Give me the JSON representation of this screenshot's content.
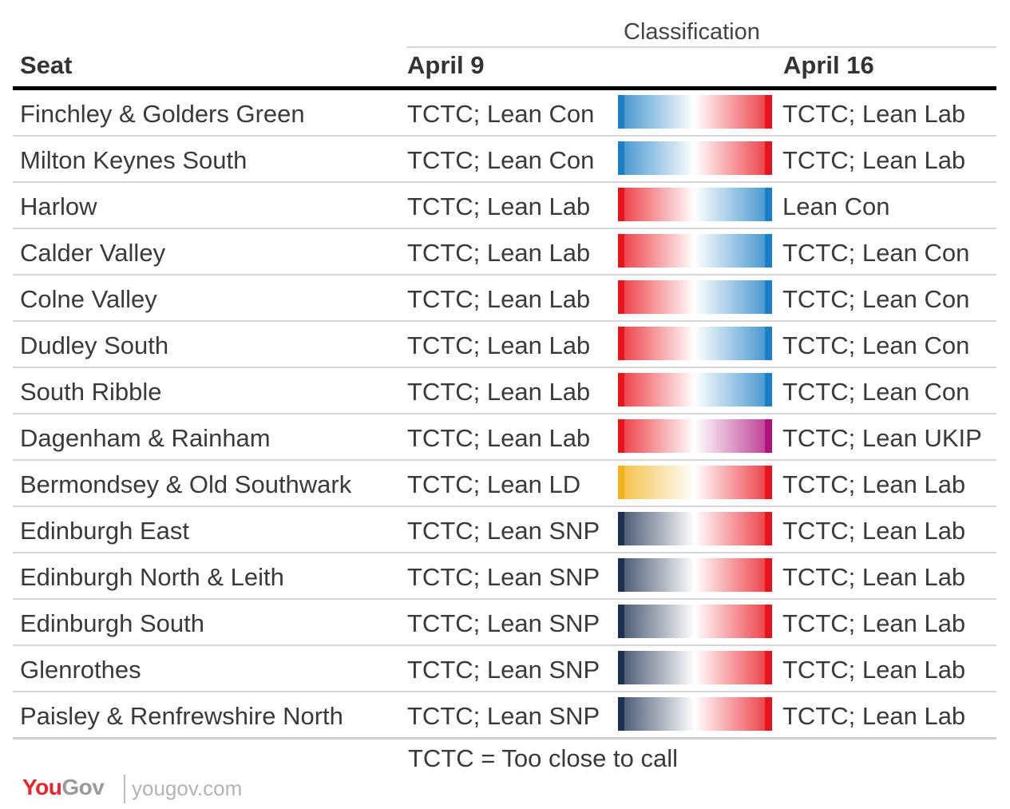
{
  "header": {
    "classification": "Classification",
    "seat": "Seat",
    "april9": "April 9",
    "april16": "April 16"
  },
  "colors": {
    "Con": "#1a7fc4",
    "Lab": "#e8141c",
    "LD": "#f2b21f",
    "SNP": "#1d3050",
    "UKIP": "#b0127d"
  },
  "rows": [
    {
      "seat": "Finchley & Golders Green",
      "april9": "TCTC; Lean Con",
      "april16": "TCTC; Lean Lab",
      "from": "Con",
      "to": "Lab"
    },
    {
      "seat": "Milton Keynes South",
      "april9": "TCTC; Lean Con",
      "april16": "TCTC; Lean Lab",
      "from": "Con",
      "to": "Lab"
    },
    {
      "seat": "Harlow",
      "april9": "TCTC; Lean Lab",
      "april16": "Lean Con",
      "from": "Lab",
      "to": "Con"
    },
    {
      "seat": "Calder Valley",
      "april9": "TCTC; Lean Lab",
      "april16": "TCTC; Lean Con",
      "from": "Lab",
      "to": "Con"
    },
    {
      "seat": "Colne Valley",
      "april9": "TCTC; Lean Lab",
      "april16": "TCTC; Lean Con",
      "from": "Lab",
      "to": "Con"
    },
    {
      "seat": "Dudley South",
      "april9": "TCTC; Lean Lab",
      "april16": "TCTC; Lean Con",
      "from": "Lab",
      "to": "Con"
    },
    {
      "seat": "South Ribble",
      "april9": "TCTC; Lean Lab",
      "april16": "TCTC; Lean Con",
      "from": "Lab",
      "to": "Con"
    },
    {
      "seat": "Dagenham & Rainham",
      "april9": "TCTC; Lean Lab",
      "april16": "TCTC; Lean UKIP",
      "from": "Lab",
      "to": "UKIP"
    },
    {
      "seat": "Bermondsey & Old Southwark",
      "april9": "TCTC; Lean LD",
      "april16": "TCTC; Lean Lab",
      "from": "LD",
      "to": "Lab"
    },
    {
      "seat": "Edinburgh East",
      "april9": "TCTC; Lean SNP",
      "april16": "TCTC; Lean Lab",
      "from": "SNP",
      "to": "Lab"
    },
    {
      "seat": "Edinburgh North & Leith",
      "april9": "TCTC; Lean SNP",
      "april16": "TCTC; Lean Lab",
      "from": "SNP",
      "to": "Lab"
    },
    {
      "seat": "Edinburgh South",
      "april9": "TCTC; Lean SNP",
      "april16": "TCTC; Lean Lab",
      "from": "SNP",
      "to": "Lab"
    },
    {
      "seat": "Glenrothes",
      "april9": "TCTC; Lean SNP",
      "april16": "TCTC; Lean Lab",
      "from": "SNP",
      "to": "Lab"
    },
    {
      "seat": "Paisley & Renfrewshire North",
      "april9": "TCTC; Lean SNP",
      "april16": "TCTC; Lean Lab",
      "from": "SNP",
      "to": "Lab"
    }
  ],
  "footnote": "TCTC = Too close to call",
  "brand": {
    "you": "You",
    "gov": "Gov",
    "url": "yougov.com"
  }
}
